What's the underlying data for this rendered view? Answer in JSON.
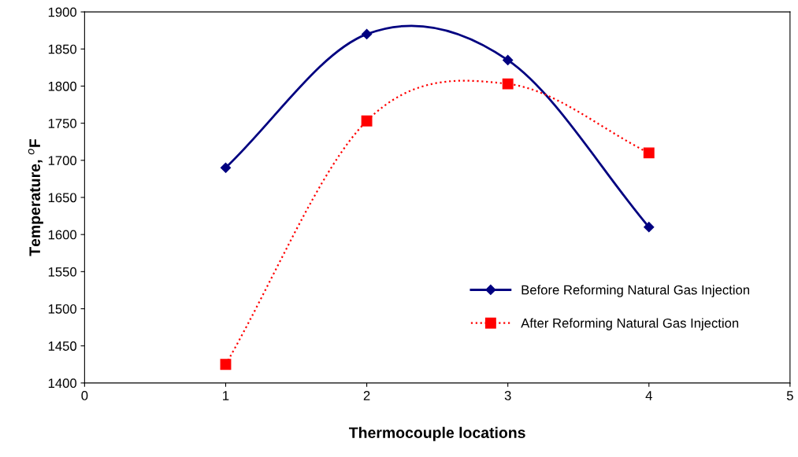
{
  "chart_data": {
    "type": "line",
    "xlabel": "Thermocouple locations",
    "ylabel": "Temperature, $^{o}$F",
    "x": [
      1,
      2,
      3,
      4
    ],
    "series": [
      {
        "name": "Before Reforming Natural Gas Injection",
        "color": "#000080",
        "values": [
          1690,
          1870,
          1835,
          1610
        ],
        "marker": "diamond",
        "line_style": "solid"
      },
      {
        "name": "After Reforming Natural Gas Injection",
        "color": "#ff0000",
        "values": [
          1425,
          1753,
          1803,
          1710
        ],
        "marker": "square",
        "line_style": "dotted"
      }
    ],
    "xlim": [
      0,
      5
    ],
    "xticks": [
      0,
      1,
      2,
      3,
      4,
      5
    ],
    "ylim": [
      1400,
      1900
    ],
    "yticks": [
      1400,
      1450,
      1500,
      1550,
      1600,
      1650,
      1700,
      1750,
      1800,
      1850,
      1900
    ],
    "grid": false,
    "legend": "lower right"
  }
}
